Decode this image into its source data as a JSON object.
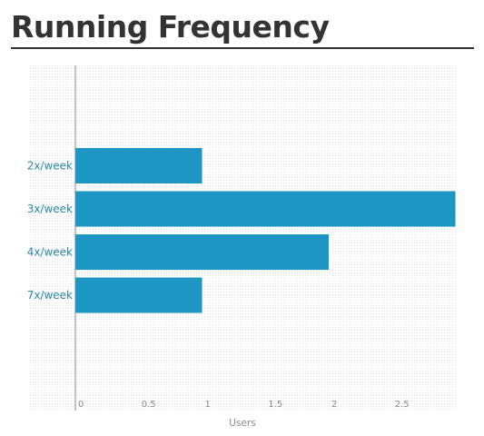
{
  "page": {
    "title": "Running Frequency"
  },
  "chart_data": {
    "type": "bar",
    "orientation": "horizontal",
    "title": "Running Frequency",
    "categories": [
      "2x/week",
      "3x/week",
      "4x/week",
      "7x/week"
    ],
    "values": [
      1,
      3,
      2,
      1
    ],
    "xlabel": "Users",
    "ylabel": "",
    "xticks": [
      "0",
      "0.5",
      "1",
      "1.5",
      "2",
      "2.5"
    ],
    "xlim": [
      0,
      3
    ],
    "grid": true,
    "colors": {
      "bar": "#1e96c4",
      "category_label": "#2b8aa8",
      "tick_label": "#888888",
      "axis": "#888888",
      "grid_dot": "#e3e3e3"
    }
  }
}
